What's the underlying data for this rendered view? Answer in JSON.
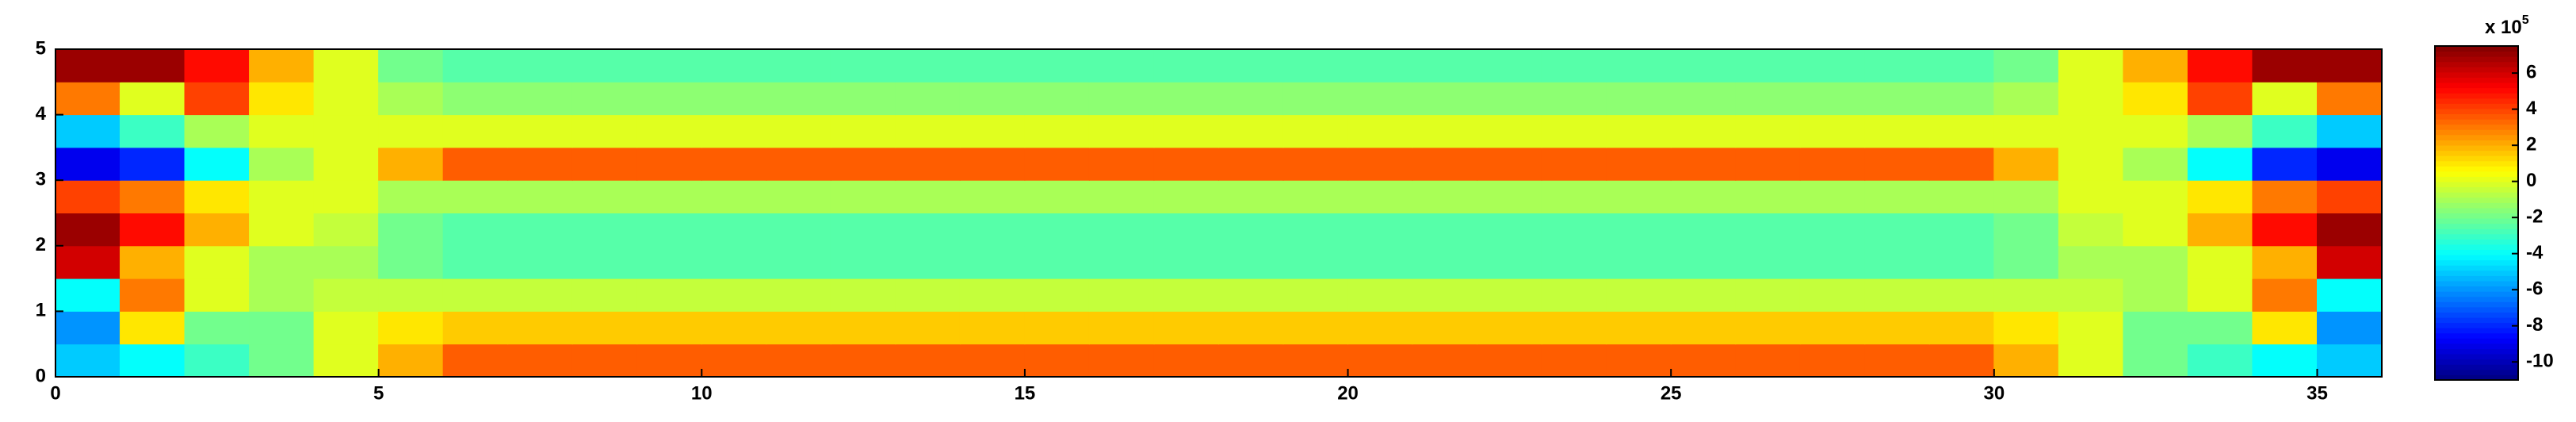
{
  "chart_data": {
    "type": "heatmap",
    "x": [
      0.5,
      1.5,
      2.5,
      3.5,
      4.5,
      5.5,
      6.5,
      7.5,
      8.5,
      9.5,
      10.5,
      11.5,
      12.5,
      13.5,
      14.5,
      15.5,
      16.5,
      17.5,
      18.5,
      19.5,
      20.5,
      21.5,
      22.5,
      23.5,
      24.5,
      25.5,
      26.5,
      27.5,
      28.5,
      29.5,
      30.5,
      31.5,
      32.5,
      33.5,
      34.5,
      35.5
    ],
    "y": [
      0.25,
      0.75,
      1.25,
      1.75,
      2.25,
      2.75,
      3.25,
      3.75,
      4.25,
      4.75
    ],
    "z": [
      [
        -5,
        -4,
        -3,
        -2,
        0,
        2,
        3.5,
        3.5,
        3.5,
        3.5,
        3.5,
        3.5,
        3.5,
        3.5,
        3.5,
        3.5,
        3.5,
        3.5,
        3.5,
        3.5,
        3.5,
        3.5,
        3.5,
        3.5,
        3.5,
        3.5,
        3.5,
        3.5,
        3.5,
        3.5,
        2,
        0,
        -2,
        -3,
        -4,
        -5
      ],
      [
        -6,
        1,
        -2,
        -2,
        0,
        1,
        1.5,
        1.5,
        1.5,
        1.5,
        1.5,
        1.5,
        1.5,
        1.5,
        1.5,
        1.5,
        1.5,
        1.5,
        1.5,
        1.5,
        1.5,
        1.5,
        1.5,
        1.5,
        1.5,
        1.5,
        1.5,
        1.5,
        1.5,
        1.5,
        1,
        0,
        -2,
        -2,
        1,
        -6
      ],
      [
        -4,
        3,
        0,
        -1,
        -0.5,
        -0.5,
        -0.5,
        -0.5,
        -0.5,
        -0.5,
        -0.5,
        -0.5,
        -0.5,
        -0.5,
        -0.5,
        -0.5,
        -0.5,
        -0.5,
        -0.5,
        -0.5,
        -0.5,
        -0.5,
        -0.5,
        -0.5,
        -0.5,
        -0.5,
        -0.5,
        -0.5,
        -0.5,
        -0.5,
        -0.5,
        -0.5,
        -1,
        0,
        3,
        -4
      ],
      [
        6,
        2,
        0,
        -1,
        -1,
        -2,
        -2.5,
        -2.5,
        -2.5,
        -2.5,
        -2.5,
        -2.5,
        -2.5,
        -2.5,
        -2.5,
        -2.5,
        -2.5,
        -2.5,
        -2.5,
        -2.5,
        -2.5,
        -2.5,
        -2.5,
        -2.5,
        -2.5,
        -2.5,
        -2.5,
        -2.5,
        -2.5,
        -2.5,
        -2,
        -1,
        -1,
        0,
        2,
        6
      ],
      [
        7,
        5,
        2,
        0,
        -0.5,
        -2,
        -2.5,
        -2.5,
        -2.5,
        -2.5,
        -2.5,
        -2.5,
        -2.5,
        -2.5,
        -2.5,
        -2.5,
        -2.5,
        -2.5,
        -2.5,
        -2.5,
        -2.5,
        -2.5,
        -2.5,
        -2.5,
        -2.5,
        -2.5,
        -2.5,
        -2.5,
        -2.5,
        -2.5,
        -2,
        -0.5,
        0,
        2,
        5,
        7
      ],
      [
        4,
        3,
        1,
        0,
        0,
        -1,
        -1,
        -1,
        -1,
        -1,
        -1,
        -1,
        -1,
        -1,
        -1,
        -1,
        -1,
        -1,
        -1,
        -1,
        -1,
        -1,
        -1,
        -1,
        -1,
        -1,
        -1,
        -1,
        -1,
        -1,
        -1,
        0,
        0,
        1,
        3,
        4
      ],
      [
        -9,
        -8,
        -4,
        -1,
        0,
        2,
        3.5,
        3.5,
        3.5,
        3.5,
        3.5,
        3.5,
        3.5,
        3.5,
        3.5,
        3.5,
        3.5,
        3.5,
        3.5,
        3.5,
        3.5,
        3.5,
        3.5,
        3.5,
        3.5,
        3.5,
        3.5,
        3.5,
        3.5,
        3.5,
        2,
        0,
        -1,
        -4,
        -8,
        -9
      ],
      [
        -5,
        -3,
        -1,
        0,
        0,
        0,
        0,
        0,
        0,
        0,
        0,
        0,
        0,
        0,
        0,
        0,
        0,
        0,
        0,
        0,
        0,
        0,
        0,
        0,
        0,
        0,
        0,
        0,
        0,
        0,
        0,
        0,
        0,
        -1,
        -3,
        -5
      ],
      [
        3,
        0,
        4,
        1,
        0,
        -1,
        -1.5,
        -1.5,
        -1.5,
        -1.5,
        -1.5,
        -1.5,
        -1.5,
        -1.5,
        -1.5,
        -1.5,
        -1.5,
        -1.5,
        -1.5,
        -1.5,
        -1.5,
        -1.5,
        -1.5,
        -1.5,
        -1.5,
        -1.5,
        -1.5,
        -1.5,
        -1.5,
        -1.5,
        -1,
        0,
        1,
        4,
        0,
        3
      ],
      [
        7,
        7,
        5,
        2,
        0,
        -2,
        -2.5,
        -2.5,
        -2.5,
        -2.5,
        -2.5,
        -2.5,
        -2.5,
        -2.5,
        -2.5,
        -2.5,
        -2.5,
        -2.5,
        -2.5,
        -2.5,
        -2.5,
        -2.5,
        -2.5,
        -2.5,
        -2.5,
        -2.5,
        -2.5,
        -2.5,
        -2.5,
        -2.5,
        -2,
        0,
        2,
        5,
        7,
        7
      ]
    ],
    "xlim": [
      0,
      36
    ],
    "xticks": [
      0,
      5,
      10,
      15,
      20,
      25,
      30,
      35
    ],
    "ylim": [
      0,
      5
    ],
    "yticks": [
      0,
      1,
      2,
      3,
      4,
      5
    ],
    "clim": [
      -11,
      7.5
    ],
    "cticks": [
      6,
      4,
      2,
      0,
      -2,
      -4,
      -6,
      -8,
      -10
    ],
    "colorbar_label": "x 10",
    "colorbar_exponent": "5",
    "colormap": "jet"
  }
}
